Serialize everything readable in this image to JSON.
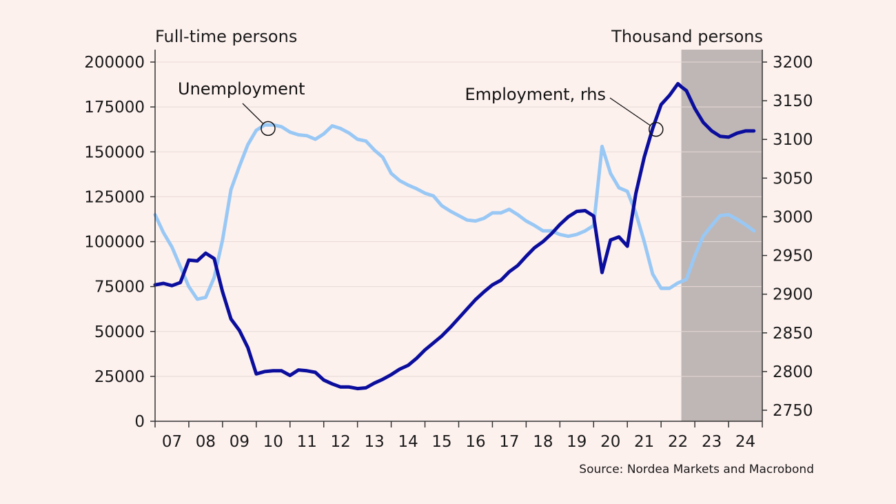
{
  "chart_data": {
    "type": "line",
    "y_left": {
      "unit_label": "Full-time persons",
      "ylim": [
        0,
        200000
      ],
      "ticks": [
        "0",
        "25000",
        "50000",
        "75000",
        "100000",
        "125000",
        "150000",
        "175000",
        "200000"
      ]
    },
    "y_right": {
      "unit_label": "Thousand persons",
      "ylim": [
        2750,
        3200
      ],
      "ticks": [
        "2750",
        "2800",
        "2850",
        "2900",
        "2950",
        "3000",
        "3050",
        "3100",
        "3150",
        "3200"
      ]
    },
    "x_axis": {
      "range": [
        2007,
        2025
      ],
      "tick_labels": [
        "07",
        "08",
        "09",
        "10",
        "11",
        "12",
        "13",
        "14",
        "15",
        "16",
        "17",
        "18",
        "19",
        "20",
        "21",
        "22",
        "23",
        "24"
      ]
    },
    "forecast_shading": {
      "from": 2022.6,
      "to": 2025
    },
    "grid": "horizontal",
    "colors": {
      "unemployment": "#99c8f5",
      "employment": "#0b0e9c",
      "shading": "#bfb7b5",
      "background": "#fdf1ee"
    },
    "series": [
      {
        "name": "Unemployment",
        "axis": "left",
        "x": [
          2007.0,
          2007.25,
          2007.5,
          2007.75,
          2008.0,
          2008.25,
          2008.5,
          2008.75,
          2009.0,
          2009.25,
          2009.5,
          2009.75,
          2010.0,
          2010.25,
          2010.5,
          2010.75,
          2011.0,
          2011.25,
          2011.5,
          2011.75,
          2012.0,
          2012.25,
          2012.5,
          2012.75,
          2013.0,
          2013.25,
          2013.5,
          2013.75,
          2014.0,
          2014.25,
          2014.5,
          2014.75,
          2015.0,
          2015.25,
          2015.5,
          2015.75,
          2016.0,
          2016.25,
          2016.5,
          2016.75,
          2017.0,
          2017.25,
          2017.5,
          2017.75,
          2018.0,
          2018.25,
          2018.5,
          2018.75,
          2019.0,
          2019.25,
          2019.5,
          2019.75,
          2020.0,
          2020.25,
          2020.5,
          2020.75,
          2021.0,
          2021.25,
          2021.5,
          2021.75,
          2022.0,
          2022.25,
          2022.5,
          2022.75,
          2023.0,
          2023.25,
          2023.5,
          2023.75,
          2024.0,
          2024.25,
          2024.5,
          2024.75
        ],
        "values": [
          115000,
          105000,
          97000,
          86000,
          75000,
          68000,
          69000,
          80000,
          101000,
          129000,
          142000,
          154000,
          162000,
          165000,
          165000,
          164000,
          161000,
          159500,
          159000,
          157000,
          160000,
          164500,
          163000,
          160500,
          157000,
          156000,
          151000,
          147000,
          138000,
          134000,
          131500,
          129500,
          127000,
          125500,
          120000,
          117000,
          114500,
          112000,
          111500,
          113000,
          116000,
          116000,
          118000,
          115000,
          111500,
          109000,
          106000,
          106000,
          104000,
          103000,
          104000,
          106000,
          109000,
          153000,
          138000,
          130000,
          128000,
          116000,
          100000,
          82000,
          74000,
          74000,
          77000,
          79000,
          92000,
          103000,
          109000,
          114500,
          115000,
          112500,
          109500,
          106000
        ]
      },
      {
        "name": "Employment, rhs",
        "axis": "right",
        "x": [
          2007.0,
          2007.25,
          2007.5,
          2007.75,
          2008.0,
          2008.25,
          2008.5,
          2008.75,
          2009.0,
          2009.25,
          2009.5,
          2009.75,
          2010.0,
          2010.25,
          2010.5,
          2010.75,
          2011.0,
          2011.25,
          2011.5,
          2011.75,
          2012.0,
          2012.25,
          2012.5,
          2012.75,
          2013.0,
          2013.25,
          2013.5,
          2013.75,
          2014.0,
          2014.25,
          2014.5,
          2014.75,
          2015.0,
          2015.25,
          2015.5,
          2015.75,
          2016.0,
          2016.25,
          2016.5,
          2016.75,
          2017.0,
          2017.25,
          2017.5,
          2017.75,
          2018.0,
          2018.25,
          2018.5,
          2018.75,
          2019.0,
          2019.25,
          2019.5,
          2019.75,
          2020.0,
          2020.25,
          2020.5,
          2020.75,
          2021.0,
          2021.25,
          2021.5,
          2021.75,
          2022.0,
          2022.25,
          2022.5,
          2022.6,
          2022.75,
          2023.0,
          2023.25,
          2023.5,
          2023.75,
          2024.0,
          2024.25,
          2024.5,
          2024.75
        ],
        "values": [
          2912,
          2914,
          2911,
          2915,
          2944,
          2943,
          2953,
          2946,
          2903,
          2868,
          2853,
          2831,
          2797,
          2800,
          2801,
          2801,
          2795,
          2802,
          2801,
          2799,
          2789,
          2784,
          2780,
          2780,
          2778,
          2779,
          2785,
          2790,
          2796,
          2803,
          2808,
          2817,
          2828,
          2837,
          2846,
          2857,
          2869,
          2881,
          2893,
          2903,
          2912,
          2918,
          2929,
          2937,
          2949,
          2960,
          2968,
          2978,
          2990,
          3000,
          3007,
          3008,
          3001,
          2928,
          2970,
          2974,
          2962,
          3030,
          3077,
          3114,
          3145,
          3157,
          3172,
          3168,
          3163,
          3140,
          3122,
          3111,
          3104,
          3103,
          3108,
          3111,
          3111
        ]
      }
    ],
    "annotations": [
      {
        "text": "Unemployment",
        "series": "Unemployment",
        "point_x": 2010.35,
        "point_y": 163000
      },
      {
        "text": "Employment, rhs",
        "series": "Employment, rhs",
        "point_x": 2021.85,
        "point_y": 3113
      }
    ]
  },
  "source": "Source: Nordea Markets and Macrobond"
}
